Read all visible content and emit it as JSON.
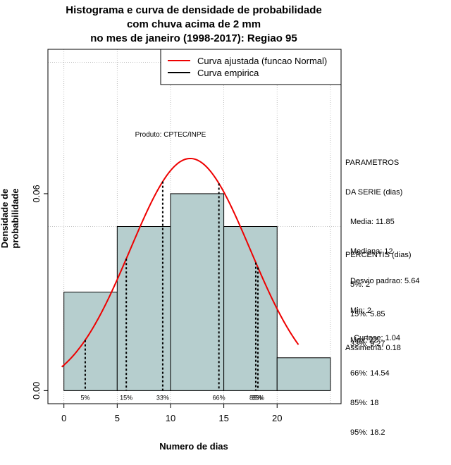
{
  "chart_data": {
    "type": "histogram",
    "title_lines": [
      "Histograma e curva de densidade de probabilidade",
      "com chuva acima de 2 mm",
      "no mes de janeiro (1998-2017): Regiao 95"
    ],
    "xlabel": "Numero de dias",
    "ylabel": "Densidade de probabilidade",
    "xlim": [
      -1.5,
      26
    ],
    "ylim": [
      -0.004,
      0.104
    ],
    "x_ticks": [
      0,
      5,
      10,
      15,
      20
    ],
    "y_ticks": [
      0.0,
      0.06
    ],
    "y_tick_labels": [
      "0.00",
      "0.06"
    ],
    "grid_x": [
      0,
      5,
      10,
      15,
      20,
      25
    ],
    "grid_y": [
      0.05,
      0.1
    ],
    "bins": [
      {
        "start": 0,
        "end": 5,
        "density": 0.03
      },
      {
        "start": 5,
        "end": 10,
        "density": 0.05
      },
      {
        "start": 10,
        "end": 15,
        "density": 0.06
      },
      {
        "start": 15,
        "end": 20,
        "density": 0.05
      },
      {
        "start": 20,
        "end": 25,
        "density": 0.01
      }
    ],
    "fitted_curve": {
      "mean": 11.85,
      "sd": 5.64,
      "x_from": -0.2,
      "x_to": 22,
      "color": "#ee0000"
    },
    "percentile_lines": [
      {
        "label": "5%",
        "x": 2
      },
      {
        "label": "15%",
        "x": 5.85
      },
      {
        "label": "33%",
        "x": 9.27
      },
      {
        "label": "66%",
        "x": 14.54
      },
      {
        "label": "85%",
        "x": 18
      },
      {
        "label": "95%",
        "x": 18.2
      }
    ],
    "annotation": "Produto: CPTEC/INPE",
    "legend": [
      {
        "label": "Curva ajustada (funcao Normal)",
        "color": "#ee0000"
      },
      {
        "label": "Curva empirica",
        "color": "#000000"
      }
    ],
    "bar_color": "#b6cece"
  },
  "parametros": {
    "heading": [
      "PARAMETROS",
      "DA SERIE (dias)"
    ],
    "lines": [
      "Media: 11.85",
      "Mediana: 12",
      "Desvio padrao: 5.64",
      "Min: 2",
      "Max: 22"
    ]
  },
  "percentis": {
    "heading": "PERCENTIS (dias)",
    "lines": [
      "5%: 2",
      "15%: 5.85",
      "33%: 9.27",
      "66%: 14.54",
      "85%: 18",
      "95%: 18.2"
    ]
  },
  "stats": {
    "curtose": "Curtose: 1.04",
    "assimetria": "Assimetria: 0.18"
  }
}
